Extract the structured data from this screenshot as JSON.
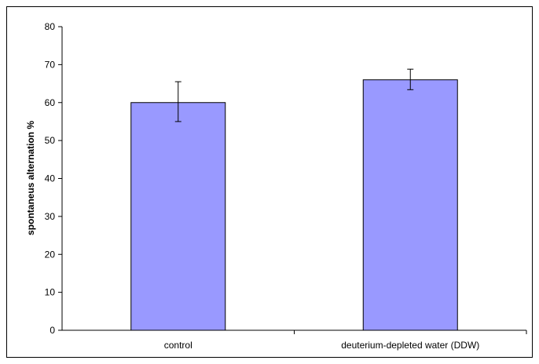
{
  "chart_data": {
    "type": "bar",
    "categories": [
      "control",
      "deuterium-depleted water (DDW)"
    ],
    "values": [
      60,
      66
    ],
    "error_low": [
      55,
      63.4
    ],
    "error_high": [
      65.5,
      68.8
    ],
    "title": "",
    "xlabel": "",
    "ylabel": "spontaneus alternation %",
    "ylim": [
      0,
      80
    ],
    "yticks": [
      0,
      10,
      20,
      30,
      40,
      50,
      60,
      70,
      80
    ],
    "grid": false,
    "legend": "none",
    "colors": {
      "bar_fill": "#9999ff",
      "bar_stroke": "#000000",
      "axis": "#000000"
    }
  }
}
